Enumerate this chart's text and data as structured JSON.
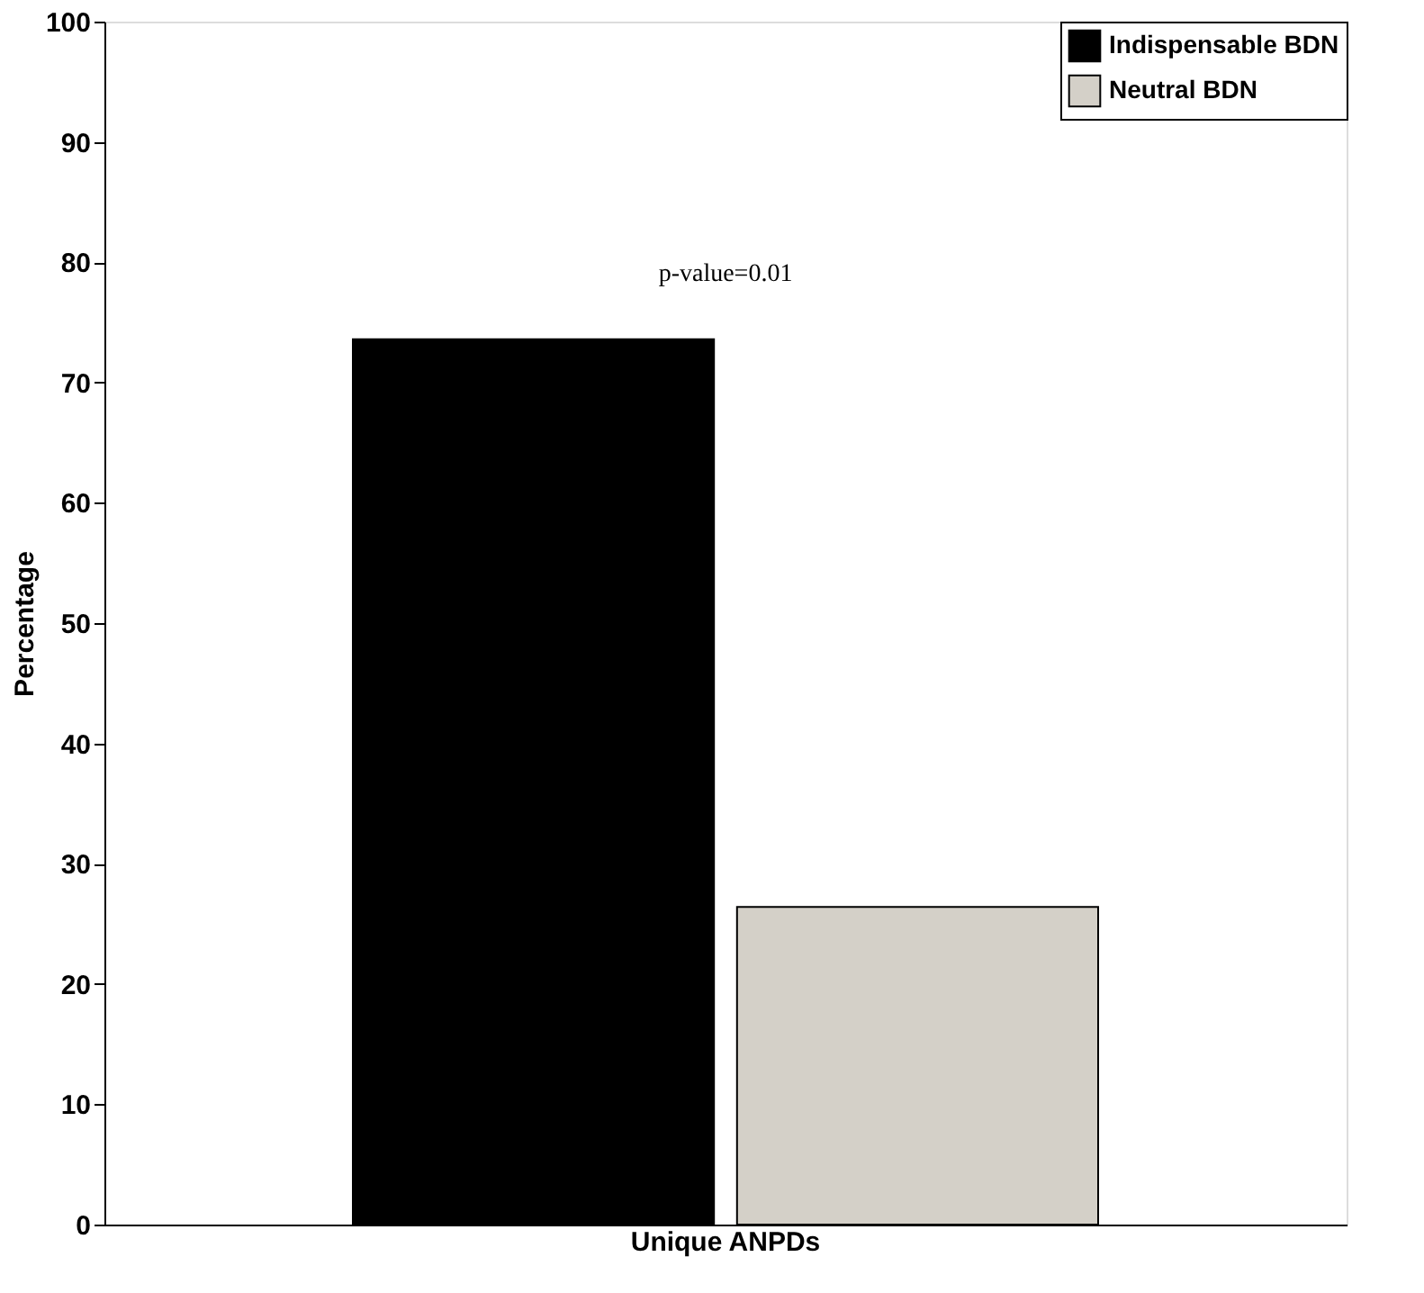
{
  "chart_data": {
    "type": "bar",
    "ylabel": "Percentage",
    "categories": [
      "Unique ANPDs"
    ],
    "series": [
      {
        "name": "Indispensable BDN",
        "color": "#000000",
        "values": [
          73.6
        ]
      },
      {
        "name": "Neutral BDN",
        "color": "#d4d0c8",
        "values": [
          26.4
        ]
      }
    ],
    "ylim": [
      0,
      100
    ],
    "yticks": [
      0,
      10,
      20,
      30,
      40,
      50,
      60,
      70,
      80,
      90,
      100
    ],
    "grid": false,
    "legend": "top right",
    "annotations": [
      "p-value=0.01"
    ]
  }
}
